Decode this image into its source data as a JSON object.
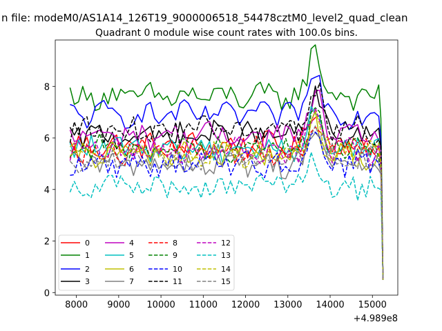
{
  "figure": {
    "suptitle": "n file: modeM0/AS1A14_126T19_9000006518_54478cztM0_level2_quad_clean"
  },
  "chart_data": {
    "type": "line",
    "title": "Quadrant 0 module wise count rates with 100.0s bins.",
    "xlabel": "",
    "ylabel": "",
    "x_offset_label": "+4.989e8",
    "xlim": [
      7500,
      15600
    ],
    "ylim": [
      -0.1,
      9.8
    ],
    "xticks": [
      8000,
      9000,
      10000,
      11000,
      12000,
      13000,
      14000,
      15000
    ],
    "yticks": [
      0,
      2,
      4,
      6,
      8
    ],
    "grid": false,
    "legend": {
      "placement": "lower-left",
      "columns": 4
    },
    "x_start": 7850,
    "x_step": 100,
    "x_end_step": 50,
    "series": [
      {
        "name": "0",
        "color": "#ff0000",
        "dash": "solid",
        "mean": 5.7
      },
      {
        "name": "1",
        "color": "#008000",
        "dash": "solid",
        "mean": 7.6
      },
      {
        "name": "2",
        "color": "#0000ff",
        "dash": "solid",
        "mean": 6.9
      },
      {
        "name": "3",
        "color": "#000000",
        "dash": "solid",
        "mean": 6.1
      },
      {
        "name": "4",
        "color": "#bf00bf",
        "dash": "solid",
        "mean": 6.1
      },
      {
        "name": "5",
        "color": "#00bfbf",
        "dash": "solid",
        "mean": 5.6
      },
      {
        "name": "6",
        "color": "#bfbf00",
        "dash": "solid",
        "mean": 5.3
      },
      {
        "name": "7",
        "color": "#808080",
        "dash": "solid",
        "mean": 5.0
      },
      {
        "name": "8",
        "color": "#ff0000",
        "dash": "dashed",
        "mean": 5.5
      },
      {
        "name": "9",
        "color": "#008000",
        "dash": "dashed",
        "mean": 5.6
      },
      {
        "name": "10",
        "color": "#0000ff",
        "dash": "dashed",
        "mean": 5.0
      },
      {
        "name": "11",
        "color": "#000000",
        "dash": "dashed",
        "mean": 6.3
      },
      {
        "name": "12",
        "color": "#bf00bf",
        "dash": "dashed",
        "mean": 5.5
      },
      {
        "name": "13",
        "color": "#00bfbf",
        "dash": "dashed",
        "mean": 4.1
      },
      {
        "name": "14",
        "color": "#bfbf00",
        "dash": "dashed",
        "mean": 5.4
      },
      {
        "name": "15",
        "color": "#808080",
        "dash": "dashed",
        "mean": 5.2
      }
    ]
  }
}
